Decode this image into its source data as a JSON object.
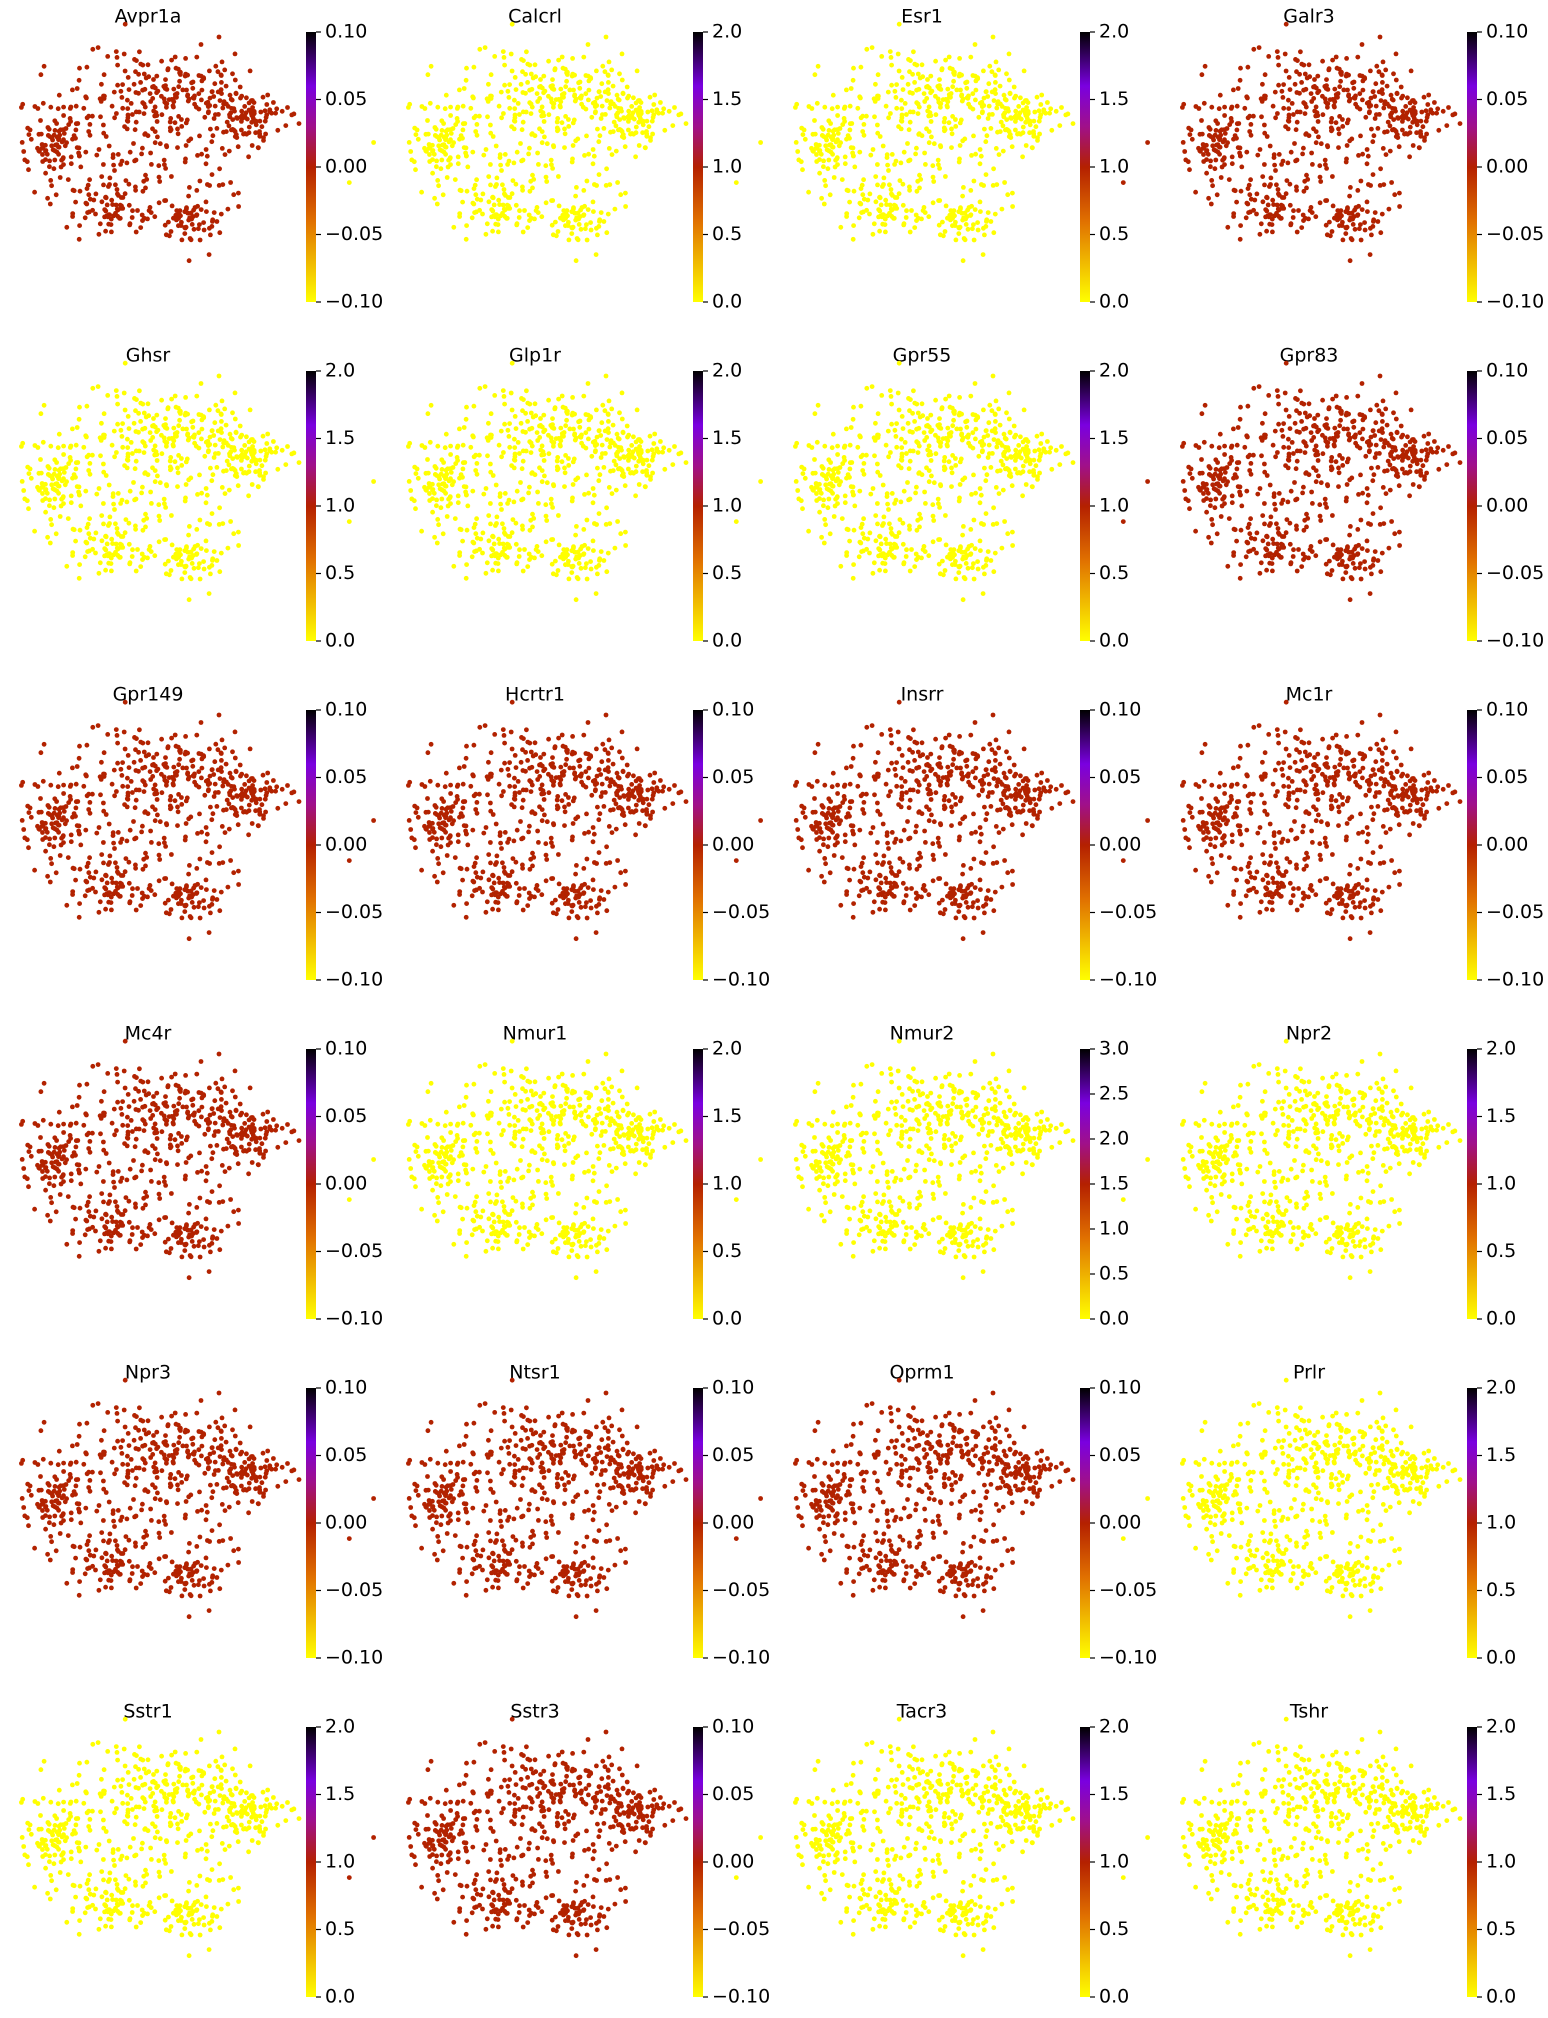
{
  "chart_data": [
    {
      "type": "scatter",
      "title": "Avpr1a",
      "color": "#b22200",
      "clim": [
        -0.1,
        0.1
      ],
      "cticks": [
        {
          "value": -0.1,
          "label": "−0.10"
        },
        {
          "value": -0.05,
          "label": "−0.05"
        },
        {
          "value": 0,
          "label": "0.00"
        },
        {
          "value": 0.05,
          "label": "0.05"
        },
        {
          "value": 0.1,
          "label": "0.10"
        }
      ]
    },
    {
      "type": "scatter",
      "title": "Calcrl",
      "color": "#ffff00",
      "clim": [
        0,
        2
      ],
      "cticks": [
        {
          "value": 0,
          "label": "0.0"
        },
        {
          "value": 0.5,
          "label": "0.5"
        },
        {
          "value": 1,
          "label": "1.0"
        },
        {
          "value": 1.5,
          "label": "1.5"
        },
        {
          "value": 2,
          "label": "2.0"
        }
      ]
    },
    {
      "type": "scatter",
      "title": "Esr1",
      "color": "#ffff00",
      "clim": [
        0,
        2
      ],
      "cticks": [
        {
          "value": 0,
          "label": "0.0"
        },
        {
          "value": 0.5,
          "label": "0.5"
        },
        {
          "value": 1,
          "label": "1.0"
        },
        {
          "value": 1.5,
          "label": "1.5"
        },
        {
          "value": 2,
          "label": "2.0"
        }
      ]
    },
    {
      "type": "scatter",
      "title": "Galr3",
      "color": "#b22200",
      "clim": [
        -0.1,
        0.1
      ],
      "cticks": [
        {
          "value": -0.1,
          "label": "−0.10"
        },
        {
          "value": -0.05,
          "label": "−0.05"
        },
        {
          "value": 0,
          "label": "0.00"
        },
        {
          "value": 0.05,
          "label": "0.05"
        },
        {
          "value": 0.1,
          "label": "0.10"
        }
      ]
    },
    {
      "type": "scatter",
      "title": "Ghsr",
      "color": "#ffff00",
      "clim": [
        0,
        2
      ],
      "cticks": [
        {
          "value": 0,
          "label": "0.0"
        },
        {
          "value": 0.5,
          "label": "0.5"
        },
        {
          "value": 1,
          "label": "1.0"
        },
        {
          "value": 1.5,
          "label": "1.5"
        },
        {
          "value": 2,
          "label": "2.0"
        }
      ]
    },
    {
      "type": "scatter",
      "title": "Glp1r",
      "color": "#ffff00",
      "clim": [
        0,
        2
      ],
      "cticks": [
        {
          "value": 0,
          "label": "0.0"
        },
        {
          "value": 0.5,
          "label": "0.5"
        },
        {
          "value": 1,
          "label": "1.0"
        },
        {
          "value": 1.5,
          "label": "1.5"
        },
        {
          "value": 2,
          "label": "2.0"
        }
      ]
    },
    {
      "type": "scatter",
      "title": "Gpr55",
      "color": "#ffff00",
      "clim": [
        0,
        2
      ],
      "cticks": [
        {
          "value": 0,
          "label": "0.0"
        },
        {
          "value": 0.5,
          "label": "0.5"
        },
        {
          "value": 1,
          "label": "1.0"
        },
        {
          "value": 1.5,
          "label": "1.5"
        },
        {
          "value": 2,
          "label": "2.0"
        }
      ]
    },
    {
      "type": "scatter",
      "title": "Gpr83",
      "color": "#b22200",
      "clim": [
        -0.1,
        0.1
      ],
      "cticks": [
        {
          "value": -0.1,
          "label": "−0.10"
        },
        {
          "value": -0.05,
          "label": "−0.05"
        },
        {
          "value": 0,
          "label": "0.00"
        },
        {
          "value": 0.05,
          "label": "0.05"
        },
        {
          "value": 0.1,
          "label": "0.10"
        }
      ]
    },
    {
      "type": "scatter",
      "title": "Gpr149",
      "color": "#b22200",
      "clim": [
        -0.1,
        0.1
      ],
      "cticks": [
        {
          "value": -0.1,
          "label": "−0.10"
        },
        {
          "value": -0.05,
          "label": "−0.05"
        },
        {
          "value": 0,
          "label": "0.00"
        },
        {
          "value": 0.05,
          "label": "0.05"
        },
        {
          "value": 0.1,
          "label": "0.10"
        }
      ]
    },
    {
      "type": "scatter",
      "title": "Hcrtr1",
      "color": "#b22200",
      "clim": [
        -0.1,
        0.1
      ],
      "cticks": [
        {
          "value": -0.1,
          "label": "−0.10"
        },
        {
          "value": -0.05,
          "label": "−0.05"
        },
        {
          "value": 0,
          "label": "0.00"
        },
        {
          "value": 0.05,
          "label": "0.05"
        },
        {
          "value": 0.1,
          "label": "0.10"
        }
      ]
    },
    {
      "type": "scatter",
      "title": "Insrr",
      "color": "#b22200",
      "clim": [
        -0.1,
        0.1
      ],
      "cticks": [
        {
          "value": -0.1,
          "label": "−0.10"
        },
        {
          "value": -0.05,
          "label": "−0.05"
        },
        {
          "value": 0,
          "label": "0.00"
        },
        {
          "value": 0.05,
          "label": "0.05"
        },
        {
          "value": 0.1,
          "label": "0.10"
        }
      ]
    },
    {
      "type": "scatter",
      "title": "Mc1r",
      "color": "#b22200",
      "clim": [
        -0.1,
        0.1
      ],
      "cticks": [
        {
          "value": -0.1,
          "label": "−0.10"
        },
        {
          "value": -0.05,
          "label": "−0.05"
        },
        {
          "value": 0,
          "label": "0.00"
        },
        {
          "value": 0.05,
          "label": "0.05"
        },
        {
          "value": 0.1,
          "label": "0.10"
        }
      ]
    },
    {
      "type": "scatter",
      "title": "Mc4r",
      "color": "#b22200",
      "clim": [
        -0.1,
        0.1
      ],
      "cticks": [
        {
          "value": -0.1,
          "label": "−0.10"
        },
        {
          "value": -0.05,
          "label": "−0.05"
        },
        {
          "value": 0,
          "label": "0.00"
        },
        {
          "value": 0.05,
          "label": "0.05"
        },
        {
          "value": 0.1,
          "label": "0.10"
        }
      ]
    },
    {
      "type": "scatter",
      "title": "Nmur1",
      "color": "#ffff00",
      "clim": [
        0,
        2
      ],
      "cticks": [
        {
          "value": 0,
          "label": "0.0"
        },
        {
          "value": 0.5,
          "label": "0.5"
        },
        {
          "value": 1,
          "label": "1.0"
        },
        {
          "value": 1.5,
          "label": "1.5"
        },
        {
          "value": 2,
          "label": "2.0"
        }
      ]
    },
    {
      "type": "scatter",
      "title": "Nmur2",
      "color": "#ffff00",
      "clim": [
        0,
        3
      ],
      "cticks": [
        {
          "value": 0,
          "label": "0.0"
        },
        {
          "value": 0.5,
          "label": "0.5"
        },
        {
          "value": 1,
          "label": "1.0"
        },
        {
          "value": 1.5,
          "label": "1.5"
        },
        {
          "value": 2,
          "label": "2.0"
        },
        {
          "value": 2.5,
          "label": "2.5"
        },
        {
          "value": 3,
          "label": "3.0"
        }
      ]
    },
    {
      "type": "scatter",
      "title": "Npr2",
      "color": "#ffff00",
      "clim": [
        0,
        2
      ],
      "cticks": [
        {
          "value": 0,
          "label": "0.0"
        },
        {
          "value": 0.5,
          "label": "0.5"
        },
        {
          "value": 1,
          "label": "1.0"
        },
        {
          "value": 1.5,
          "label": "1.5"
        },
        {
          "value": 2,
          "label": "2.0"
        }
      ]
    },
    {
      "type": "scatter",
      "title": "Npr3",
      "color": "#b22200",
      "clim": [
        -0.1,
        0.1
      ],
      "cticks": [
        {
          "value": -0.1,
          "label": "−0.10"
        },
        {
          "value": -0.05,
          "label": "−0.05"
        },
        {
          "value": 0,
          "label": "0.00"
        },
        {
          "value": 0.05,
          "label": "0.05"
        },
        {
          "value": 0.1,
          "label": "0.10"
        }
      ]
    },
    {
      "type": "scatter",
      "title": "Ntsr1",
      "color": "#b22200",
      "clim": [
        -0.1,
        0.1
      ],
      "cticks": [
        {
          "value": -0.1,
          "label": "−0.10"
        },
        {
          "value": -0.05,
          "label": "−0.05"
        },
        {
          "value": 0,
          "label": "0.00"
        },
        {
          "value": 0.05,
          "label": "0.05"
        },
        {
          "value": 0.1,
          "label": "0.10"
        }
      ]
    },
    {
      "type": "scatter",
      "title": "Oprm1",
      "color": "#b22200",
      "clim": [
        -0.1,
        0.1
      ],
      "cticks": [
        {
          "value": -0.1,
          "label": "−0.10"
        },
        {
          "value": -0.05,
          "label": "−0.05"
        },
        {
          "value": 0,
          "label": "0.00"
        },
        {
          "value": 0.05,
          "label": "0.05"
        },
        {
          "value": 0.1,
          "label": "0.10"
        }
      ]
    },
    {
      "type": "scatter",
      "title": "Prlr",
      "color": "#ffff00",
      "clim": [
        0,
        2
      ],
      "cticks": [
        {
          "value": 0,
          "label": "0.0"
        },
        {
          "value": 0.5,
          "label": "0.5"
        },
        {
          "value": 1,
          "label": "1.0"
        },
        {
          "value": 1.5,
          "label": "1.5"
        },
        {
          "value": 2,
          "label": "2.0"
        }
      ]
    },
    {
      "type": "scatter",
      "title": "Sstr1",
      "color": "#ffff00",
      "clim": [
        0,
        2
      ],
      "cticks": [
        {
          "value": 0,
          "label": "0.0"
        },
        {
          "value": 0.5,
          "label": "0.5"
        },
        {
          "value": 1,
          "label": "1.0"
        },
        {
          "value": 1.5,
          "label": "1.5"
        },
        {
          "value": 2,
          "label": "2.0"
        }
      ]
    },
    {
      "type": "scatter",
      "title": "Sstr3",
      "color": "#b22200",
      "clim": [
        -0.1,
        0.1
      ],
      "cticks": [
        {
          "value": -0.1,
          "label": "−0.10"
        },
        {
          "value": -0.05,
          "label": "−0.05"
        },
        {
          "value": 0,
          "label": "0.00"
        },
        {
          "value": 0.05,
          "label": "0.05"
        },
        {
          "value": 0.1,
          "label": "0.10"
        }
      ]
    },
    {
      "type": "scatter",
      "title": "Tacr3",
      "color": "#ffff00",
      "clim": [
        0,
        2
      ],
      "cticks": [
        {
          "value": 0,
          "label": "0.0"
        },
        {
          "value": 0.5,
          "label": "0.5"
        },
        {
          "value": 1,
          "label": "1.0"
        },
        {
          "value": 1.5,
          "label": "1.5"
        },
        {
          "value": 2,
          "label": "2.0"
        }
      ]
    },
    {
      "type": "scatter",
      "title": "Tshr",
      "color": "#ffff00",
      "clim": [
        0,
        2
      ],
      "cticks": [
        {
          "value": 0,
          "label": "0.0"
        },
        {
          "value": 0.5,
          "label": "0.5"
        },
        {
          "value": 1,
          "label": "1.0"
        },
        {
          "value": 1.5,
          "label": "1.5"
        },
        {
          "value": 2,
          "label": "2.0"
        }
      ]
    }
  ]
}
